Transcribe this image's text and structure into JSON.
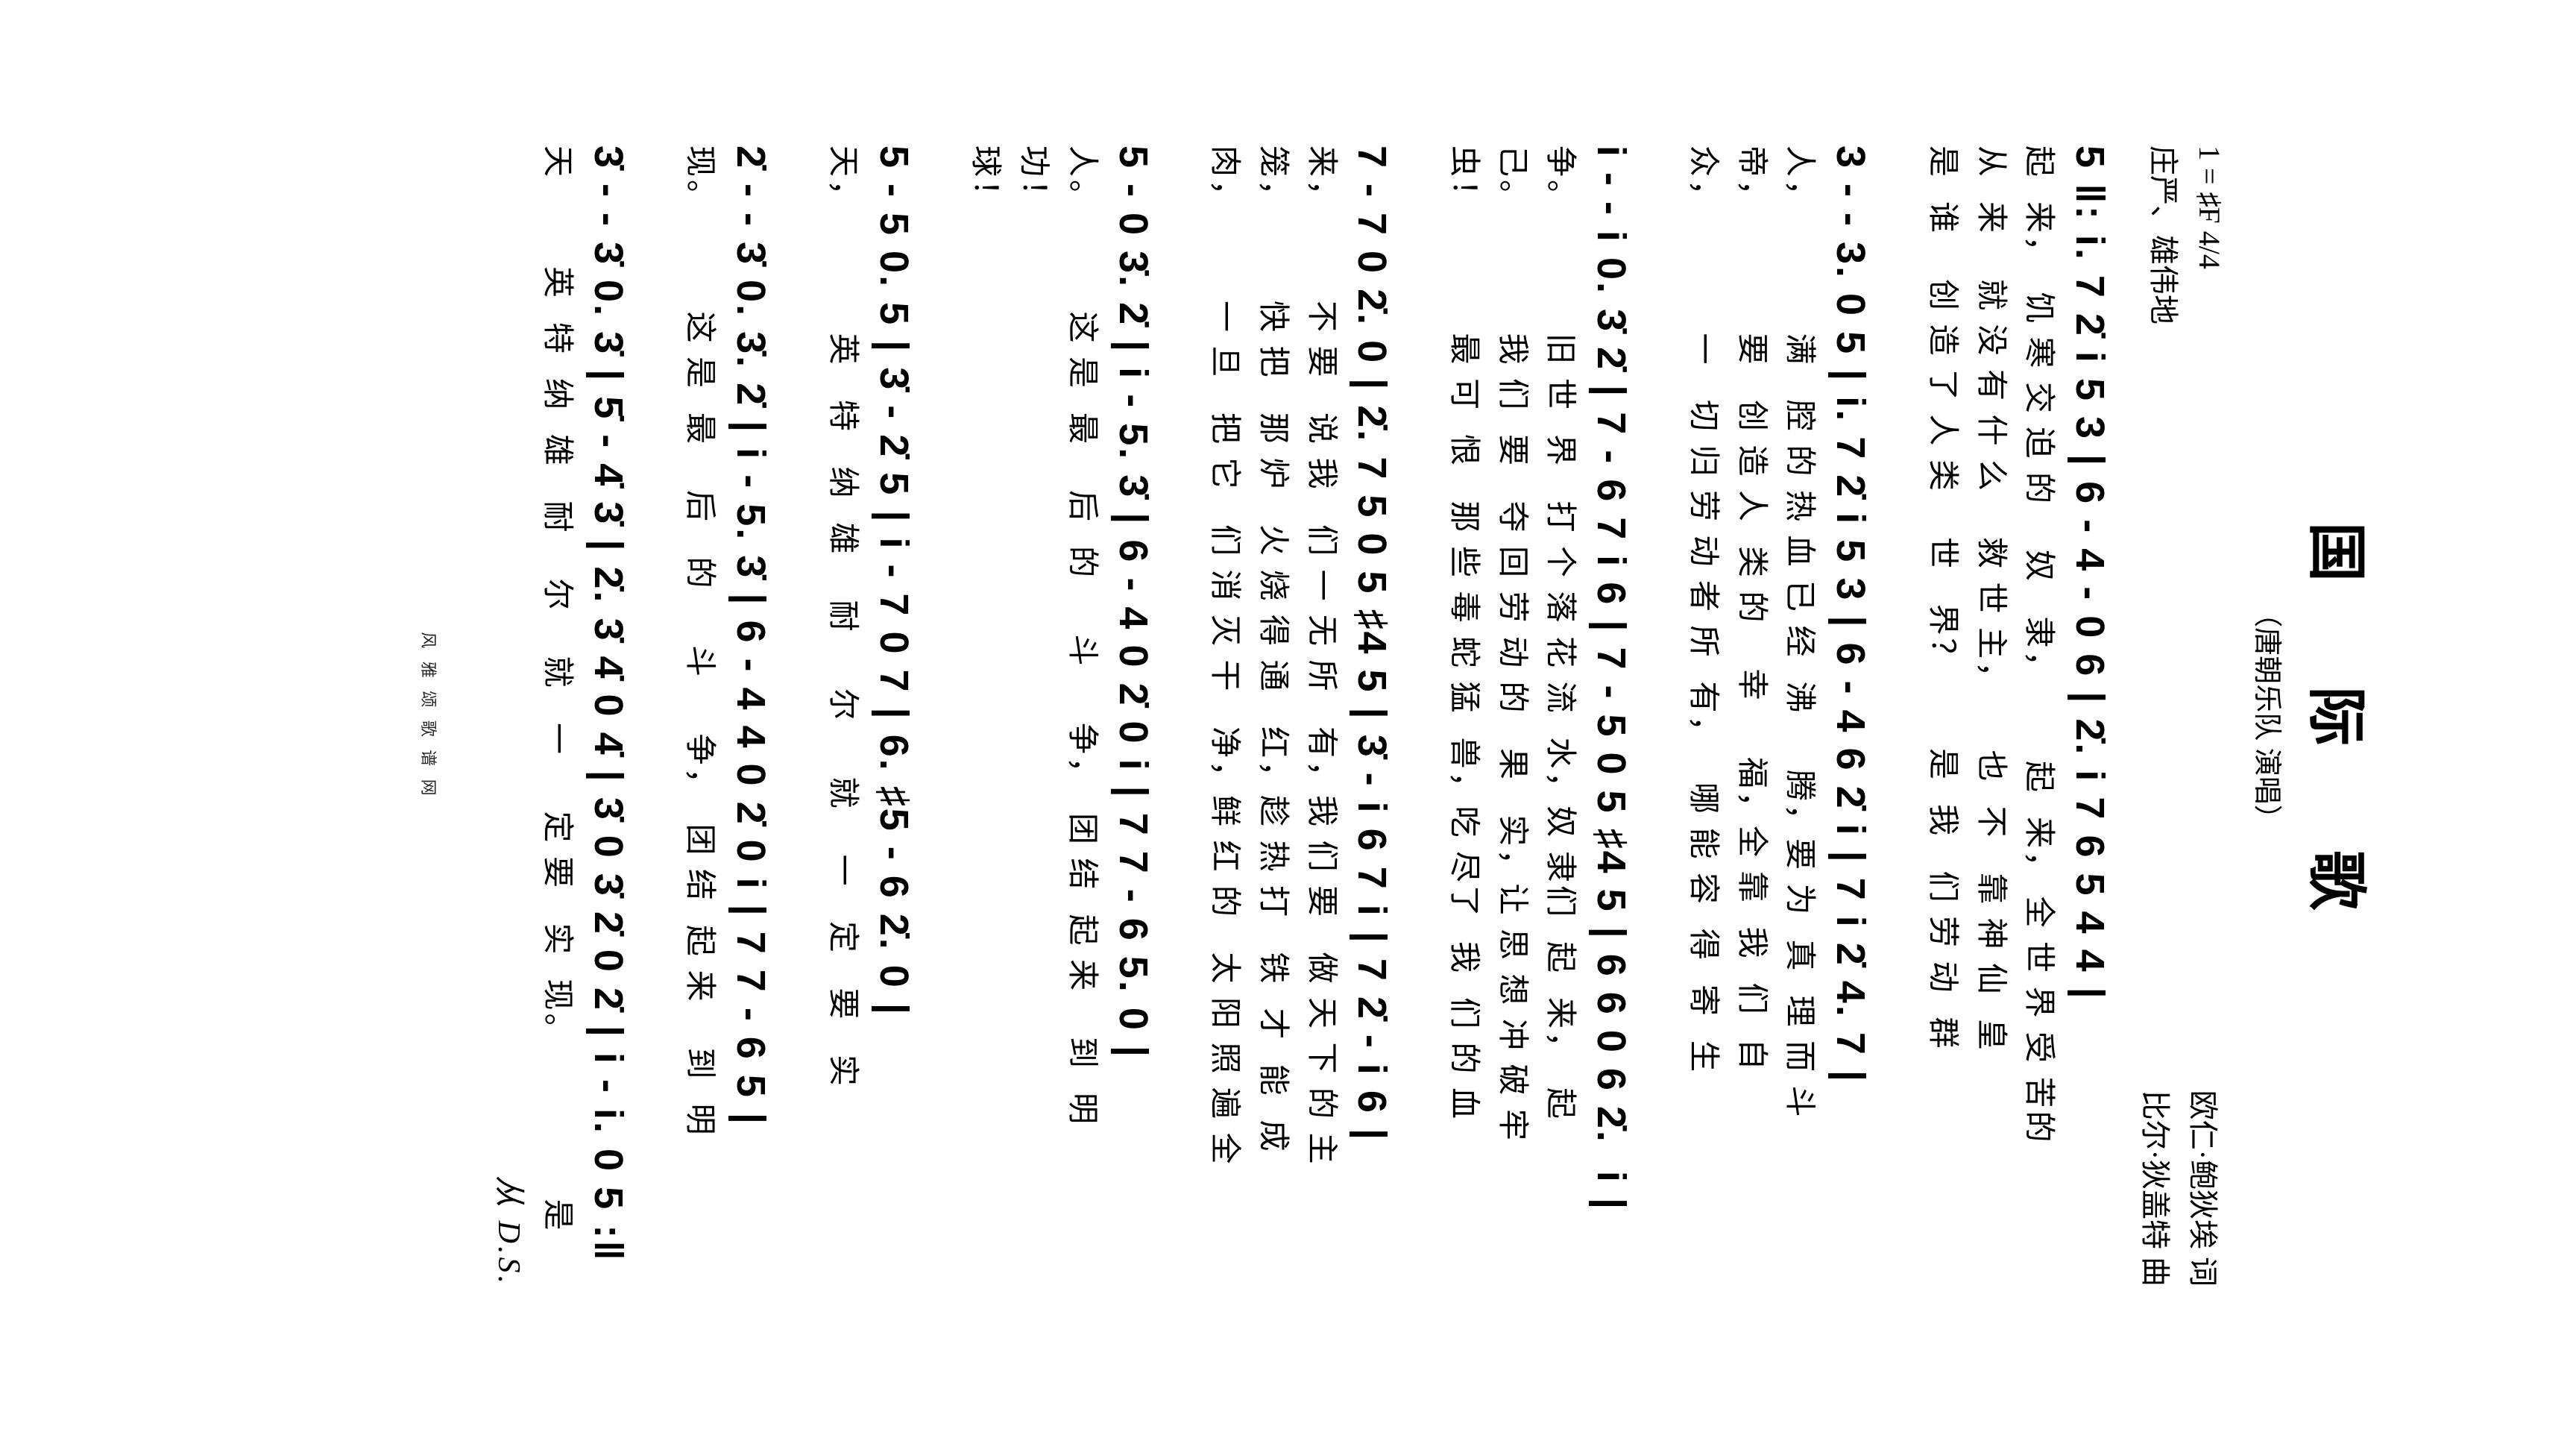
{
  "title": "国 际 歌",
  "subtitle": "（唐朝乐队  演唱）",
  "key_signature": "1 = ♯F 4/4",
  "tempo_mark": "庄严、雄伟地",
  "lyricist": "欧仁·鲍狄埃  词",
  "composer": "比尔·狄盖特  曲",
  "footer_site": "风 雅 颂 歌 谱 网",
  "ds_mark": "从 D.S.",
  "staves": [
    {
      "notation": "5 ‖: i. 7 2̇ i 5 3 | 6 - 4 - 0 6 | 2̇. i 7 6 5 4 4 |",
      "lyrics": [
        "起  来，  饥 寒 交 迫 的    奴   隶，       起  来， 全 世 界 受 苦的",
        "从  来    就 没 有 什 么    救 世 主，     也  不   靠 神 仙  皇",
        "是  谁    创 造 了 人 类    世   界？       是  我   们 劳 动  群"
      ]
    },
    {
      "notation": "3 - - 3. 0 5 | i. 7 2̇ i 5 3 | 6 - 4 6 2̇ i | 7 i 2̇ 4. 7 |",
      "lyrics": [
        "人，           满   腔 的 热 血 已 经  沸     腾，要 为  真  理 而 斗",
        "帝，           要   创 造 人  类 的    幸     福，全 靠  我  们  自",
        "众，           一   切 归 劳 动 者 所  有，   哪 能 容  得  寄  生"
      ]
    },
    {
      "notation": "i - - i 0. 3̇ 2̇ | 7 - 6 7 i 6 | 7 - 5 0 5 ♯4 5 | 6 6 0 6 2̇.  i |",
      "lyrics": [
        "争。           旧 世  界   打 个 落 花 流  水，奴 隶们  起  来，  起",
        "己。           我 们  要   夺 回 劳 动 的   果   实，让 思 想 冲 破 牢",
        "虫！           最 可  恨   那 些 毒 蛇 猛  兽，吃 尽了  我  们 的 血"
      ]
    },
    {
      "notation": "7 - 7 0 2̇. 0 | 2̇. 7 5 0 5 ♯4 5 | 3̇ - i 6 7 i | 7 2̇ - i 6 |",
      "lyrics": [
        "来，        不 要   说 我   们 一 无 所   有，我 们 要   做 天 下 的 主",
        "笼，        快 把   那 炉   火 烧 得 通   红，趁 热 打   铁  才  能  成",
        "肉，        一 旦   把 它   们 消 灭 干   净，鲜 红 的   太 阳 照 遍 全"
      ]
    },
    {
      "notation": "5 - 0 3̇. 2̇ | i - 5. 3̇ | 6 - 4 0 2̇ 0 i | 7 7 - 6 5. 0 |",
      "lyrics": [
        "人。         这 是  最    后  的     斗     争，  团 结  起 来    到  明",
        "功！",
        "球！"
      ]
    },
    {
      "notation": "5 - 5 0. 5 | 3̇ - 2̇ 5 | i - 7 0 7 | 6. ♯5 - 6 2̇. 0 |",
      "lyrics": [
        "天，           英   特   纳  雄    耐     尔     就    一   定   要   实"
      ]
    },
    {
      "notation": "2̇ - - 3̇ 0. 3̇. 2̇ | i - 5. 3̇ | 6 - 4 4 0 2̇ 0 i | 7 7 - 6 5 |",
      "lyrics": [
        "现。         这 是  最    后   的     斗     争，  团 结  起 来    到  明"
      ]
    },
    {
      "notation": "3̇ - - 3̇ 0. 3̇ | 5̇ - 4̇ 3̇ | 2̇. 3̇ 4̇ 0 4̇ | 3̇ 0 3̇ 2̇ 0 2̇ | i - i. 0 5 :‖",
      "lyrics": [
        "天        英  特  纳  雄   耐    尔    就   一     定 要   实  现。              是"
      ]
    }
  ]
}
